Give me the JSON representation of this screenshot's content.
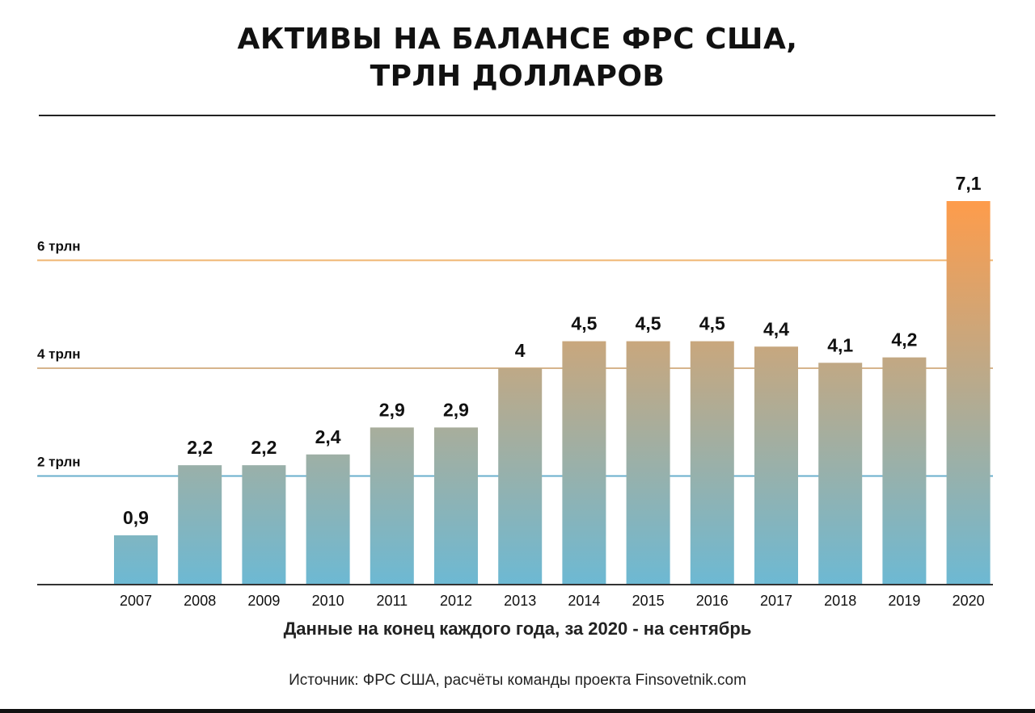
{
  "title": {
    "line1": "АКТИВЫ НА БАЛАНСЕ ФРС США,",
    "line2": "ТРЛН ДОЛЛАРОВ"
  },
  "note": "Данные на конец каждого года, за 2020 - на сентябрь",
  "source": "Источник: ФРС США, расчёты команды проекта Finsovetnik.com",
  "chart_data": {
    "type": "bar",
    "categories": [
      "2007",
      "2008",
      "2009",
      "2010",
      "2011",
      "2012",
      "2013",
      "2014",
      "2015",
      "2016",
      "2017",
      "2018",
      "2019",
      "2020"
    ],
    "values": [
      0.9,
      2.2,
      2.2,
      2.4,
      2.9,
      2.9,
      4,
      4.5,
      4.5,
      4.5,
      4.4,
      4.1,
      4.2,
      7.1
    ],
    "value_labels": [
      "0,9",
      "2,2",
      "2,2",
      "2,4",
      "2,9",
      "2,9",
      "4",
      "4,5",
      "4,5",
      "4,5",
      "4,4",
      "4,1",
      "4,2",
      "7,1"
    ],
    "ylim": [
      0,
      7.1
    ],
    "gridlines": [
      {
        "value": 2,
        "label": "2 трлн",
        "color": "#6aafcc"
      },
      {
        "value": 4,
        "label": "4 трлн",
        "color": "#d6b48c"
      },
      {
        "value": 6,
        "label": "6 трлн",
        "color": "#f0b672"
      }
    ],
    "colors": {
      "bar_bottom": "#6db9d3",
      "bar_top": "#fe9c4b",
      "axis": "#333333"
    },
    "legend": "none"
  }
}
